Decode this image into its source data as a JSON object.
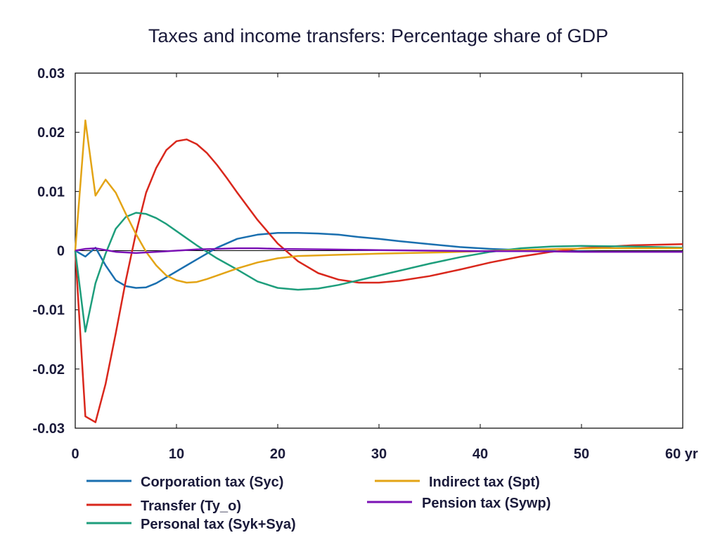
{
  "chart_data": {
    "type": "line",
    "title": "Taxes and income transfers: Percentage share of GDP",
    "xlabel": "",
    "ylabel": "",
    "xlim": [
      0,
      60
    ],
    "ylim": [
      -0.03,
      0.03
    ],
    "x_ticks": [
      0,
      10,
      20,
      30,
      40,
      50,
      60
    ],
    "x_tick_labels": [
      "0",
      "10",
      "20",
      "30",
      "40",
      "50",
      "60 yr"
    ],
    "y_ticks": [
      0.03,
      0.02,
      0.01,
      0,
      -0.01,
      -0.02,
      -0.03
    ],
    "y_tick_labels": [
      "0.03",
      "0.02",
      "0.01",
      "0",
      "-0.01",
      "-0.02",
      "-0.03"
    ],
    "grid": false,
    "legend_position": "bottom",
    "series": [
      {
        "name": "Corporation tax (Syc)",
        "color": "#1a6faf",
        "x": [
          0,
          1,
          2,
          3,
          4,
          5,
          6,
          7,
          8,
          9,
          10,
          11,
          12,
          14,
          16,
          18,
          20,
          22,
          24,
          26,
          28,
          30,
          32,
          35,
          38,
          41,
          44,
          48,
          52,
          56,
          60
        ],
        "y": [
          0,
          -0.001,
          0.0005,
          -0.0025,
          -0.005,
          -0.006,
          -0.0063,
          -0.0062,
          -0.0055,
          -0.0045,
          -0.0035,
          -0.0025,
          -0.0015,
          0.0005,
          0.002,
          0.0027,
          0.003,
          0.003,
          0.0029,
          0.0027,
          0.0023,
          0.002,
          0.0016,
          0.0011,
          0.0006,
          0.0003,
          0.0001,
          -0.0001,
          -0.0002,
          -0.0002,
          -0.0002
        ]
      },
      {
        "name": "Transfer (Ty_o)",
        "color": "#d9271c",
        "x": [
          0,
          1,
          2,
          3,
          4,
          5,
          6,
          7,
          8,
          9,
          10,
          11,
          12,
          13,
          14,
          15,
          16,
          18,
          20,
          22,
          24,
          26,
          28,
          30,
          32,
          35,
          38,
          41,
          44,
          47,
          50,
          55,
          60
        ],
        "y": [
          0,
          -0.028,
          -0.029,
          -0.0225,
          -0.014,
          -0.005,
          0.003,
          0.0098,
          0.014,
          0.017,
          0.0185,
          0.0188,
          0.018,
          0.0165,
          0.0145,
          0.0122,
          0.0098,
          0.0052,
          0.0012,
          -0.0018,
          -0.0038,
          -0.0049,
          -0.0054,
          -0.0054,
          -0.0051,
          -0.0043,
          -0.0032,
          -0.002,
          -0.001,
          -0.0002,
          0.0004,
          0.0009,
          0.0011
        ]
      },
      {
        "name": "Personal tax (Syk+Sya)",
        "color": "#1e9e7c",
        "x": [
          0,
          1,
          2,
          3,
          4,
          5,
          6,
          7,
          8,
          9,
          10,
          11,
          12,
          14,
          16,
          18,
          20,
          22,
          24,
          26,
          28,
          30,
          32,
          35,
          38,
          41,
          44,
          47,
          50,
          55,
          60
        ],
        "y": [
          0,
          -0.0137,
          -0.0055,
          -0.0005,
          0.0037,
          0.0057,
          0.0064,
          0.0062,
          0.0055,
          0.0045,
          0.0033,
          0.0021,
          0.0009,
          -0.0013,
          -0.0032,
          -0.0052,
          -0.0063,
          -0.0066,
          -0.0064,
          -0.0058,
          -0.005,
          -0.0042,
          -0.0034,
          -0.0022,
          -0.0011,
          -0.0002,
          0.0004,
          0.0007,
          0.0008,
          0.0007,
          0.0005
        ]
      },
      {
        "name": "Indirect tax (Spt)",
        "color": "#e3a415",
        "x": [
          0,
          1,
          2,
          3,
          4,
          5,
          6,
          7,
          8,
          9,
          10,
          11,
          12,
          13,
          14,
          16,
          18,
          20,
          22,
          24,
          26,
          28,
          30,
          33,
          36,
          40,
          44,
          48,
          52,
          56,
          60
        ],
        "y": [
          0,
          0.022,
          0.0093,
          0.012,
          0.0098,
          0.0062,
          0.0028,
          -0.0002,
          -0.0025,
          -0.0042,
          -0.005,
          -0.0054,
          -0.0053,
          -0.0048,
          -0.0042,
          -0.003,
          -0.002,
          -0.0013,
          -0.0009,
          -0.0008,
          -0.0007,
          -0.0006,
          -0.0005,
          -0.0004,
          -0.0003,
          -0.0001,
          0.0001,
          0.0003,
          0.0004,
          0.0004,
          0.0004
        ]
      },
      {
        "name": "Pension tax (Sywp)",
        "color": "#7b12b5",
        "x": [
          0,
          1,
          2,
          3,
          4,
          5,
          6,
          7,
          8,
          10,
          12,
          14,
          16,
          18,
          20,
          25,
          30,
          35,
          40,
          45,
          50,
          55,
          60
        ],
        "y": [
          0,
          0.0003,
          0.0004,
          0.0001,
          -0.0002,
          -0.0003,
          -0.0004,
          -0.0003,
          -0.0002,
          0,
          0.0002,
          0.0003,
          0.0004,
          0.0004,
          0.0003,
          0.0002,
          0.0001,
          0,
          -0.0001,
          -0.0001,
          -0.0002,
          -0.0002,
          -0.0002
        ]
      }
    ]
  }
}
